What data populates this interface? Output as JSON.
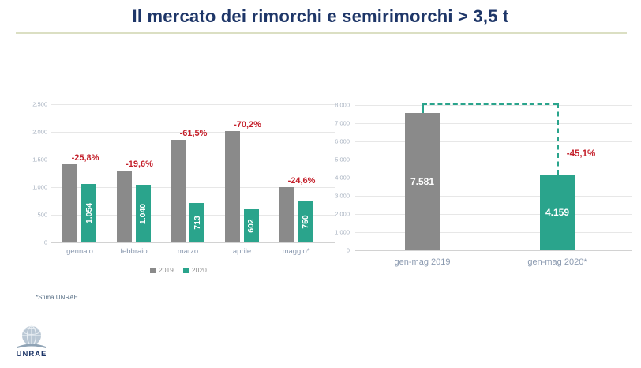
{
  "slide": {
    "title": "Il mercato dei rimorchi e semirimorchi > 3,5 t",
    "footnote": "*Stima UNRAE",
    "logo_text": "UNRAE"
  },
  "colors": {
    "title_navy": "#1e3668",
    "title_underline": "#dbdfc3",
    "bar_gray": "#8a8a8a",
    "bar_green": "#2aa48c",
    "pct_red": "#c4202b",
    "gridline": "#e7e7e7",
    "axis_label": "#a9b3c1",
    "category_label": "#8b9ab0"
  },
  "chart_data": [
    {
      "type": "bar",
      "title": "",
      "categories": [
        "gennaio",
        "febbraio",
        "marzo",
        "aprile",
        "maggio*"
      ],
      "series": [
        {
          "name": "2019",
          "color": "#8a8a8a",
          "values": [
            1420,
            1294,
            1852,
            2020,
            995
          ],
          "labels": [
            "",
            "",
            "",
            "",
            ""
          ]
        },
        {
          "name": "2020",
          "color": "#2aa48c",
          "values": [
            1054,
            1040,
            713,
            602,
            750
          ],
          "labels": [
            "1.054",
            "1.040",
            "713",
            "602",
            "750"
          ]
        }
      ],
      "pct_change": [
        "-25,8%",
        "-19,6%",
        "-61,5%",
        "-70,2%",
        "-24,6%"
      ],
      "ylim": [
        0,
        2500
      ],
      "ytick_step": 500,
      "ytick_labels": [
        "0",
        "500",
        "1.000",
        "1.500",
        "2.000",
        "2.500"
      ],
      "legend_position": "bottom",
      "grid": true
    },
    {
      "type": "bar",
      "title": "",
      "categories": [
        "gen-mag 2019",
        "gen-mag 2020*"
      ],
      "values": [
        7581,
        4159
      ],
      "labels": [
        "7.581",
        "4.159"
      ],
      "colors": [
        "#8a8a8a",
        "#2aa48c"
      ],
      "pct_change": "-45,1%",
      "ylim": [
        0,
        8000
      ],
      "ytick_step": 1000,
      "ytick_labels": [
        "0",
        "1.000",
        "2.000",
        "3.000",
        "4.000",
        "5.000",
        "6.000",
        "7.000",
        "8.000"
      ],
      "grid": true,
      "annotation": "dashed-bracket-from-2019-top-to-2020-top"
    }
  ]
}
